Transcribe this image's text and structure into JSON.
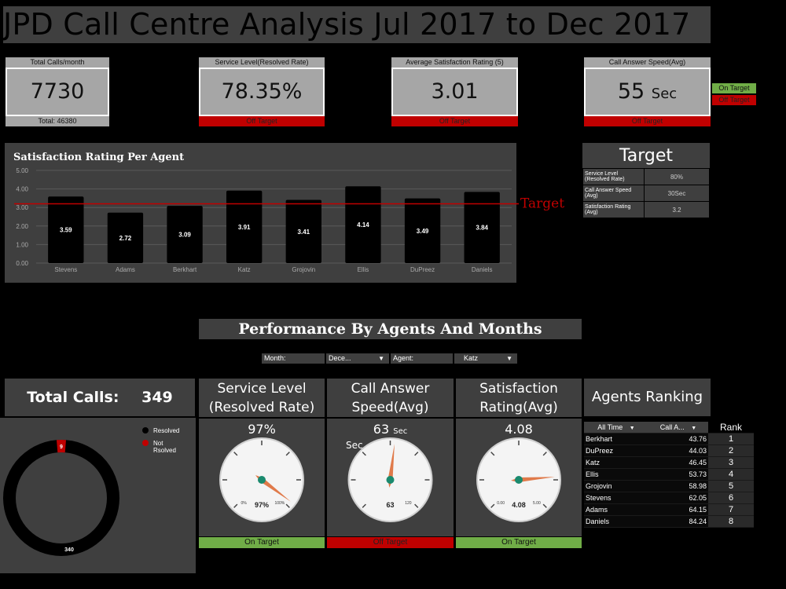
{
  "header": {
    "title": "JPD Call Centre Analysis Jul 2017 to Dec 2017"
  },
  "kpis": [
    {
      "label": "Total Calls/month",
      "value": "7730",
      "footer": "Total: 46380",
      "footer_status": "neutral"
    },
    {
      "label": "Service Level(Resolved Rate)",
      "value": "78.35%",
      "footer": "Off Target",
      "footer_status": "off"
    },
    {
      "label": "Average Satisfaction Rating (5)",
      "value": "3.01",
      "footer": "Off Target",
      "footer_status": "off"
    },
    {
      "label": "Call Answer Speed(Avg)",
      "value": "55",
      "unit": "Sec",
      "footer": "Off Target",
      "footer_status": "off"
    }
  ],
  "legend": {
    "on_target": "On Target",
    "off_target": "Off Target"
  },
  "colors": {
    "on_target": "#70ad47",
    "off_target": "#c00000",
    "panel": "#3f3f3f",
    "kpi_box": "#a6a6a6",
    "needle": "#e07a4a",
    "hub": "#1a8a6e"
  },
  "chart_data": {
    "type": "bar",
    "title": "Satisfaction Rating Per Agent",
    "categories": [
      "Stevens",
      "Adams",
      "Berkhart",
      "Katz",
      "Grojovin",
      "Ellis",
      "DuPreez",
      "Daniels"
    ],
    "values": [
      3.59,
      2.72,
      3.09,
      3.91,
      3.41,
      4.14,
      3.49,
      3.84
    ],
    "ylim": [
      0,
      5
    ],
    "yticks": [
      "0.00",
      "1.00",
      "2.00",
      "3.00",
      "4.00",
      "5.00"
    ],
    "target_value": 3.2,
    "target_label": "Target",
    "grid": true
  },
  "target": {
    "title": "Target",
    "rows": [
      {
        "label": "Service Level (Resolved Rate)",
        "value": "80%"
      },
      {
        "label": "Call Answer Speed (Avg)",
        "value": "30Sec"
      },
      {
        "label": "Satisfaction Rating (Avg)",
        "value": "3.2"
      }
    ]
  },
  "performance": {
    "title": "Performance By Agents And Months",
    "month_label": "Month:",
    "month_value": "Dece...",
    "agent_label": "Agent:",
    "agent_value": "Katz"
  },
  "total_calls": {
    "label": "Total Calls:",
    "value": "349",
    "resolved": 340,
    "not_resolved": 9,
    "resolved_label": "Resolved",
    "not_resolved_label": "Not Rsolved",
    "resolved_text": "340",
    "not_resolved_text": "9"
  },
  "gauges": [
    {
      "title_line1": "Service Level",
      "title_line2": "(Resolved Rate)",
      "value_text": "97%",
      "inner_text": "97%",
      "min_label": "0%",
      "max_label": "100%",
      "fraction": 0.97,
      "status": "On Target"
    },
    {
      "title_line1": "Call Answer",
      "title_line2": "Speed(Avg)",
      "value_text": "63",
      "value_unit": "Sec",
      "side_label": "Sec",
      "inner_text": "63",
      "min_label": "",
      "max_label": "120",
      "fraction": 0.525,
      "status": "Off Target"
    },
    {
      "title_line1": "Satisfaction",
      "title_line2": "Rating(Avg)",
      "value_text": "4.08",
      "inner_text": "4.08",
      "min_label": "0.00",
      "max_label": "5.00",
      "fraction": 0.816,
      "status": "On Target"
    }
  ],
  "ranking": {
    "title": "Agents Ranking",
    "filter_label": "All Time",
    "col2_label": "Call A...",
    "col3_label": "Rank",
    "rows": [
      {
        "name": "Berkhart",
        "value": "43.76",
        "rank": "1"
      },
      {
        "name": "DuPreez",
        "value": "44.03",
        "rank": "2"
      },
      {
        "name": "Katz",
        "value": "46.45",
        "rank": "3"
      },
      {
        "name": "Ellis",
        "value": "53.73",
        "rank": "4"
      },
      {
        "name": "Grojovin",
        "value": "58.98",
        "rank": "5"
      },
      {
        "name": "Stevens",
        "value": "62.05",
        "rank": "6"
      },
      {
        "name": "Adams",
        "value": "64.15",
        "rank": "7"
      },
      {
        "name": "Daniels",
        "value": "84.24",
        "rank": "8"
      }
    ]
  }
}
